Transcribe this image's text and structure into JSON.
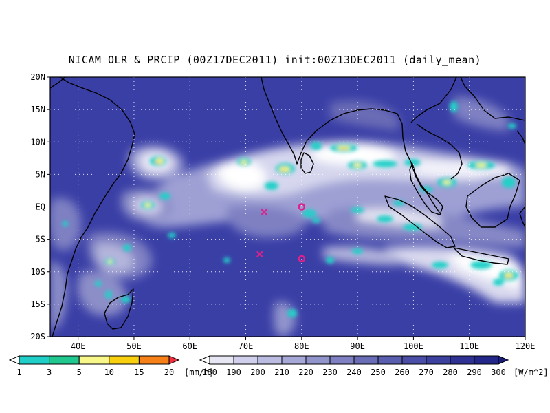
{
  "title": "NICAM OLR & PRCIP (00Z17DEC2011) init:00Z13DEC2011 (daily_mean)",
  "map": {
    "lon_range": [
      35,
      120
    ],
    "lat_range": [
      -20,
      20
    ],
    "grid": "dotted",
    "x_ticks": [
      "40E",
      "50E",
      "60E",
      "70E",
      "80E",
      "90E",
      "100E",
      "110E",
      "120E"
    ],
    "x_tick_values": [
      40,
      50,
      60,
      70,
      80,
      90,
      100,
      110,
      120
    ],
    "y_ticks": [
      "20N",
      "15N",
      "10N",
      "5N",
      "EQ",
      "5S",
      "10S",
      "15S",
      "20S"
    ],
    "y_tick_values": [
      20,
      15,
      10,
      5,
      0,
      -5,
      -10,
      -15,
      -20
    ],
    "markers": [
      {
        "symbol": "circle",
        "lon": 80,
        "lat": 0,
        "color": "#e0208a"
      },
      {
        "symbol": "circle",
        "lon": 80,
        "lat": -8,
        "color": "#e0208a"
      },
      {
        "symbol": "cross",
        "lon": 73.3,
        "lat": -0.8,
        "color": "#e0208a"
      },
      {
        "symbol": "cross",
        "lon": 72.5,
        "lat": -7.3,
        "color": "#e0208a"
      }
    ],
    "colors": {
      "ocean_base": "#3a3fa6",
      "cloud_high": "#ffffff",
      "coast": "#000000"
    }
  },
  "precip_legend": {
    "labels": [
      "1",
      "3",
      "5",
      "10",
      "15",
      "20"
    ],
    "unit": "[mm/h]",
    "colors": [
      "#ffffff",
      "#20d0c8",
      "#20c890",
      "#f8f88a",
      "#f8d010",
      "#f88018",
      "#f03040"
    ]
  },
  "olr_legend": {
    "labels": [
      "180",
      "190",
      "200",
      "210",
      "220",
      "230",
      "240",
      "250",
      "260",
      "270",
      "280",
      "290",
      "300"
    ],
    "unit": "[W/m^2]",
    "colors": [
      "#ffffff",
      "#e6e6f4",
      "#d0d0ec",
      "#bcbce2",
      "#a6a8d8",
      "#9294cc",
      "#7e80c2",
      "#6a6cb6",
      "#5a5eae",
      "#4a4ea6",
      "#3c409e",
      "#2e3294",
      "#24278a",
      "#1a1c78"
    ]
  }
}
